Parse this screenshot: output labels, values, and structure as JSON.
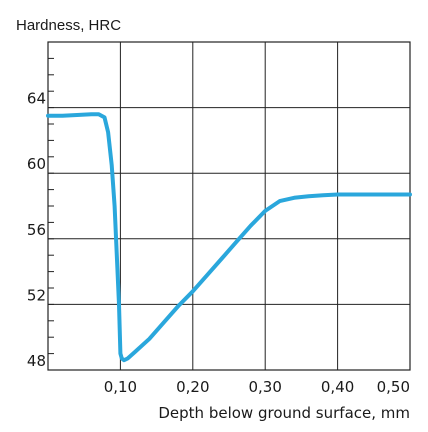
{
  "chart_data": {
    "type": "line",
    "title": "",
    "ylabel": "Hardness, HRC",
    "xlabel": "Depth below ground surface, mm",
    "xlim": [
      0.0,
      0.5
    ],
    "ylim": [
      48,
      68
    ],
    "x_ticks": [
      0.1,
      0.2,
      0.3,
      0.4,
      0.5
    ],
    "x_tick_labels": [
      "0,10",
      "0,20",
      "0,30",
      "0,40",
      "0,50"
    ],
    "y_ticks": [
      48,
      52,
      56,
      60,
      64
    ],
    "y_tick_labels": [
      "48",
      "52",
      "56",
      "60",
      "64"
    ],
    "grid": true,
    "line_color": "#2aa7dc",
    "series": [
      {
        "x": [
          0.0,
          0.02,
          0.04,
          0.06,
          0.07,
          0.078,
          0.083,
          0.088,
          0.092,
          0.095,
          0.098,
          0.1,
          0.102,
          0.105,
          0.11,
          0.12,
          0.14,
          0.16,
          0.18,
          0.2,
          0.22,
          0.24,
          0.26,
          0.28,
          0.3,
          0.32,
          0.34,
          0.36,
          0.38,
          0.4,
          0.43,
          0.46,
          0.5
        ],
        "y": [
          63.5,
          63.5,
          63.55,
          63.6,
          63.6,
          63.4,
          62.5,
          60.5,
          58.0,
          55.0,
          52.0,
          49.0,
          48.7,
          48.6,
          48.7,
          49.1,
          49.9,
          50.9,
          51.9,
          52.8,
          53.8,
          54.8,
          55.8,
          56.8,
          57.7,
          58.3,
          58.5,
          58.6,
          58.65,
          58.7,
          58.7,
          58.7,
          58.7
        ]
      }
    ]
  }
}
